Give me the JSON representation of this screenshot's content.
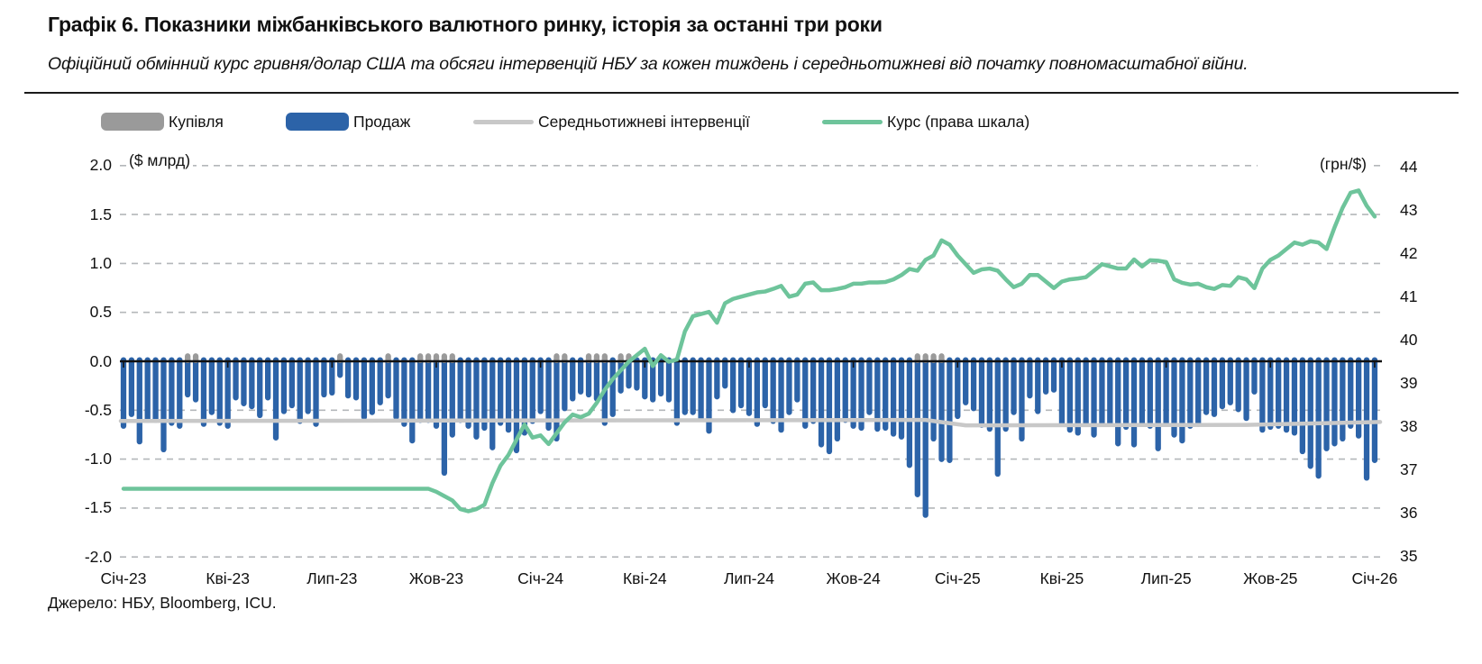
{
  "header": {
    "title": "Графік 6. Показники міжбанківського валютного ринку, історія за останні три роки",
    "subtitle": "Офіційний обмінний курс гривня/долар США та обсяги інтервенцій НБУ за кожен тиждень і середньотижневі від початку повномасштабної війни."
  },
  "source": "Джерело: НБУ, Bloomberg, ICU.",
  "legend": [
    {
      "label": "Купівля",
      "swatch": "bar",
      "color": "#9a9a9a"
    },
    {
      "label": "Продаж",
      "swatch": "bar",
      "color": "#2c63a8"
    },
    {
      "label": "Середньотижневі інтервенції",
      "swatch": "line",
      "color": "#c8c8c8"
    },
    {
      "label": "Курс (права шкала)",
      "swatch": "line",
      "color": "#6ec49b"
    }
  ],
  "chart_data": {
    "type": "bar+line",
    "title": "Показники міжбанківського валютного ринку, історія за останні три роки",
    "left_axis": {
      "label": "($ млрд)",
      "ticks": [
        "2.0",
        "1.5",
        "1.0",
        "0.5",
        "0.0",
        "-0.5",
        "-1.0",
        "-1.5",
        "-2.0"
      ],
      "tick_values": [
        2,
        1.5,
        1,
        0.5,
        0,
        -0.5,
        -1,
        -1.5,
        -2
      ],
      "range": [
        -2,
        2
      ]
    },
    "right_axis": {
      "label": "(грн/$)",
      "ticks": [
        "44",
        "43",
        "42",
        "41",
        "40",
        "39",
        "38",
        "37",
        "36",
        "35"
      ],
      "tick_values": [
        44,
        43,
        42,
        41,
        40,
        39,
        38,
        37,
        36,
        35
      ],
      "range": [
        35,
        44
      ]
    },
    "x_labels": [
      "Січ-23",
      "Кві-23",
      "Лип-23",
      "Жов-23",
      "Січ-24",
      "Кві-24",
      "Лип-24",
      "Жов-24",
      "Січ-25",
      "Кві-25",
      "Лип-25",
      "Жов-25",
      "Січ-26"
    ],
    "weeks_per_x_label": 13,
    "grid": "dashed-horizontal",
    "legend_position": "top",
    "series": {
      "sell_weekly_usd_bn": [
        -0.69,
        -0.57,
        -0.85,
        -0.63,
        -0.63,
        -0.93,
        -0.66,
        -0.69,
        -0.37,
        -0.42,
        -0.67,
        -0.55,
        -0.66,
        -0.69,
        -0.4,
        -0.46,
        -0.49,
        -0.58,
        -0.4,
        -0.81,
        -0.54,
        -0.48,
        -0.64,
        -0.54,
        -0.67,
        -0.37,
        -0.35,
        -0.17,
        -0.38,
        -0.4,
        -0.6,
        -0.55,
        -0.45,
        -0.38,
        -0.6,
        -0.67,
        -0.84,
        -0.63,
        -0.63,
        -0.69,
        -1.17,
        -0.78,
        -0.63,
        -0.69,
        -0.8,
        -0.71,
        -0.91,
        -0.66,
        -0.73,
        -0.94,
        -0.76,
        -0.64,
        -0.54,
        -0.71,
        -0.82,
        -0.51,
        -0.41,
        -0.34,
        -0.37,
        -0.41,
        -0.66,
        -0.57,
        -0.33,
        -0.28,
        -0.3,
        -0.39,
        -0.42,
        -0.36,
        -0.42,
        -0.66,
        -0.55,
        -0.55,
        -0.61,
        -0.74,
        -0.39,
        -0.28,
        -0.53,
        -0.48,
        -0.56,
        -0.67,
        -0.48,
        -0.64,
        -0.73,
        -0.55,
        -0.42,
        -0.69,
        -0.64,
        -0.88,
        -0.95,
        -0.82,
        -0.63,
        -0.69,
        -0.71,
        -0.55,
        -0.72,
        -0.71,
        -0.77,
        -0.8,
        -1.09,
        -1.39,
        -1.6,
        -0.82,
        -1.03,
        -1.04,
        -0.59,
        -0.45,
        -0.51,
        -0.68,
        -0.72,
        -1.18,
        -0.72,
        -0.55,
        -0.82,
        -0.38,
        -0.54,
        -0.34,
        -0.32,
        -0.67,
        -0.73,
        -0.76,
        -0.67,
        -0.78,
        -0.66,
        -0.67,
        -0.87,
        -0.7,
        -0.88,
        -0.67,
        -0.69,
        -0.92,
        -0.66,
        -0.78,
        -0.84,
        -0.69,
        -0.67,
        -0.55,
        -0.57,
        -0.49,
        -0.45,
        -0.52,
        -0.61,
        -0.34,
        -0.73,
        -0.7,
        -0.69,
        -0.73,
        -0.76,
        -0.95,
        -1.1,
        -1.2,
        -0.92,
        -0.87,
        -0.82,
        -0.69,
        -0.79,
        -1.22,
        -1.04
      ],
      "buy_weeks": [
        8,
        9,
        27,
        33,
        37,
        38,
        39,
        40,
        41,
        54,
        55,
        58,
        59,
        60,
        62,
        63,
        99,
        100,
        101,
        102
      ],
      "buy_value_usd_bn": 0.04,
      "avg_interventions_breakpoints": [
        [
          0,
          -0.61
        ],
        [
          100,
          -0.6
        ],
        [
          105,
          -0.655
        ],
        [
          140,
          -0.65
        ],
        [
          156,
          -0.62
        ]
      ],
      "rate_weekly_uah_usd": [
        36.57,
        36.57,
        36.57,
        36.57,
        36.57,
        36.57,
        36.57,
        36.57,
        36.57,
        36.57,
        36.57,
        36.57,
        36.57,
        36.57,
        36.57,
        36.57,
        36.57,
        36.57,
        36.57,
        36.57,
        36.57,
        36.57,
        36.57,
        36.57,
        36.57,
        36.57,
        36.57,
        36.57,
        36.57,
        36.57,
        36.57,
        36.57,
        36.57,
        36.57,
        36.57,
        36.57,
        36.57,
        36.57,
        36.57,
        36.5,
        36.4,
        36.3,
        36.1,
        36.05,
        36.1,
        36.2,
        36.7,
        37.1,
        37.35,
        37.7,
        38.05,
        37.75,
        37.8,
        37.6,
        37.85,
        38.1,
        38.28,
        38.22,
        38.3,
        38.55,
        38.85,
        39.1,
        39.3,
        39.5,
        39.65,
        39.8,
        39.4,
        39.65,
        39.5,
        39.55,
        40.2,
        40.55,
        40.6,
        40.65,
        40.4,
        40.85,
        40.95,
        41.0,
        41.05,
        41.1,
        41.12,
        41.18,
        41.25,
        41.0,
        41.05,
        41.3,
        41.33,
        41.15,
        41.15,
        41.18,
        41.22,
        41.3,
        41.3,
        41.33,
        41.33,
        41.34,
        41.4,
        41.5,
        41.64,
        41.6,
        41.85,
        41.95,
        42.3,
        42.2,
        41.95,
        41.75,
        41.55,
        41.63,
        41.65,
        41.6,
        41.4,
        41.22,
        41.3,
        41.5,
        41.5,
        41.35,
        41.2,
        41.35,
        41.4,
        41.42,
        41.45,
        41.6,
        41.75,
        41.7,
        41.65,
        41.65,
        41.86,
        41.7,
        41.84,
        41.83,
        41.8,
        41.4,
        41.32,
        41.28,
        41.3,
        41.22,
        41.18,
        41.27,
        41.25,
        41.45,
        41.4,
        41.2,
        41.65,
        41.85,
        41.95,
        42.1,
        42.25,
        42.2,
        42.28,
        42.25,
        42.1,
        42.6,
        43.05,
        43.4,
        43.45,
        43.1,
        42.85
      ]
    },
    "colors": {
      "sell": "#2c63a8",
      "buy": "#9a9a9a",
      "avg_line": "#c8c8c8",
      "rate_line": "#6ec49b",
      "grid": "#b4b7ba",
      "zero_line": "#111111"
    }
  }
}
